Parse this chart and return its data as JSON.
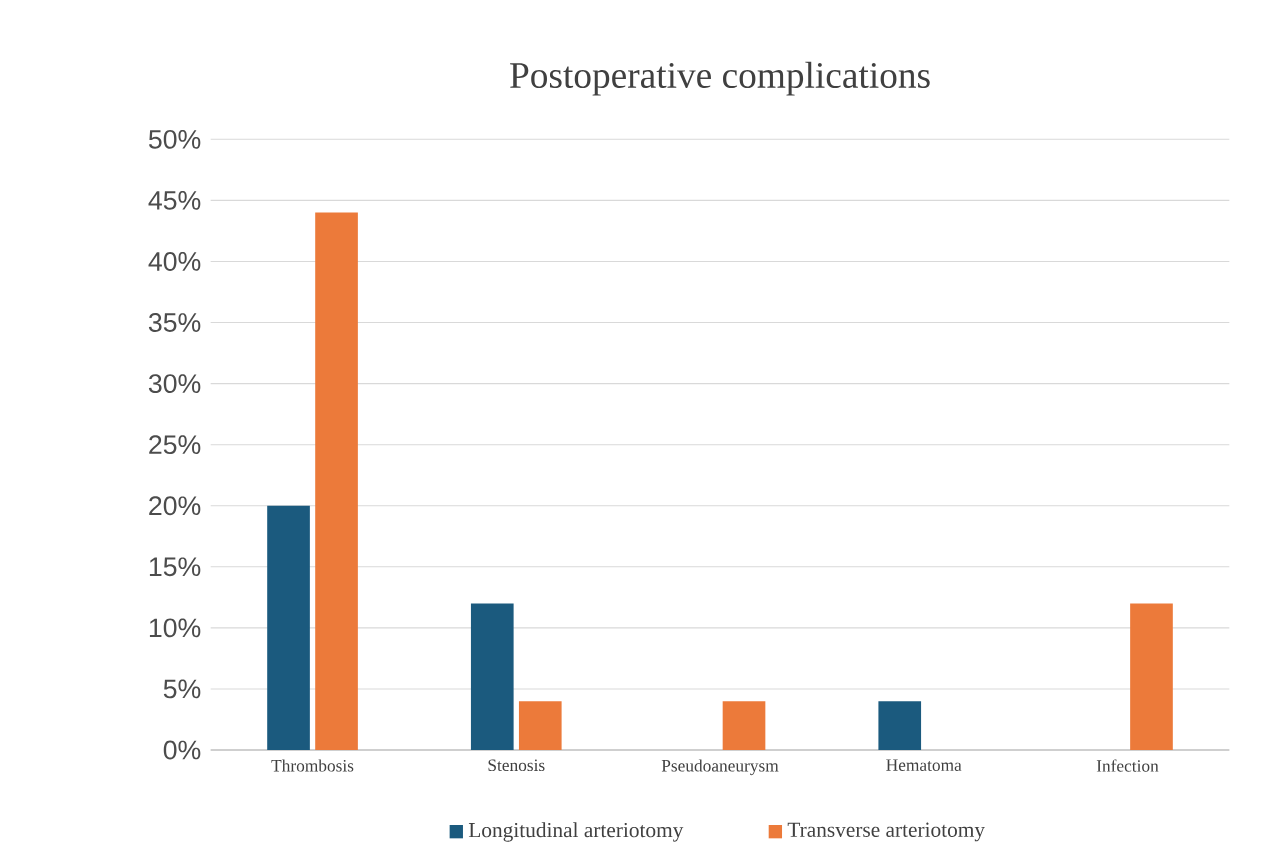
{
  "chart_data": {
    "type": "bar",
    "title": "Postoperative complications",
    "categories": [
      "Thrombosis",
      "Stenosis",
      "Pseudoaneurysm",
      "Hematoma",
      "Infection"
    ],
    "series": [
      {
        "name": "Longitudinal arteriotomy",
        "color": "#1b5a7e",
        "values": [
          20,
          12,
          0,
          4,
          0
        ]
      },
      {
        "name": "Transverse arteriotomy",
        "color": "#ec7a3a",
        "values": [
          44,
          4,
          4,
          0,
          12
        ]
      }
    ],
    "ylim": [
      0,
      50
    ],
    "yticks": [
      {
        "value": 0,
        "label": "0%"
      },
      {
        "value": 5,
        "label": "5%"
      },
      {
        "value": 10,
        "label": "10%"
      },
      {
        "value": 15,
        "label": "15%"
      },
      {
        "value": 20,
        "label": "20%"
      },
      {
        "value": 25,
        "label": "25%"
      },
      {
        "value": 30,
        "label": "30%"
      },
      {
        "value": 35,
        "label": "35%"
      },
      {
        "value": 40,
        "label": "40%"
      },
      {
        "value": 45,
        "label": "45%"
      },
      {
        "value": 50,
        "label": "50%"
      }
    ],
    "grid": "y",
    "legend": "bottom"
  }
}
